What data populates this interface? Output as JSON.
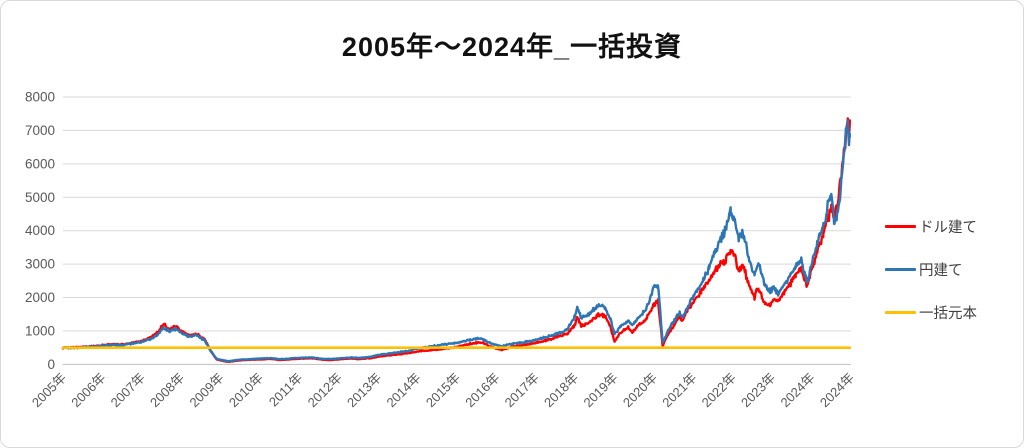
{
  "title": "2005年～2024年_一括投資",
  "legend": {
    "position": "right",
    "items": [
      {
        "label": "ドル建て",
        "color": "#ff0000"
      },
      {
        "label": "円建て",
        "color": "#2e75b6"
      },
      {
        "label": "一括元本",
        "color": "#ffc000"
      }
    ]
  },
  "axis_colors": {
    "grid": "#d9d9d9",
    "axis_line": "#bfbfbf",
    "tick_text": "#595959"
  },
  "chart_data": {
    "type": "line",
    "title": "2005年～2024年_一括投資",
    "xlabel": "",
    "ylabel": "",
    "ylim": [
      0,
      8000
    ],
    "y_ticks": [
      0,
      1000,
      2000,
      3000,
      4000,
      5000,
      6000,
      7000,
      8000
    ],
    "xlim": [
      2005,
      2025
    ],
    "x_tick_labels": [
      "2005年",
      "2006年",
      "2007年",
      "2008年",
      "2009年",
      "2010年",
      "2011年",
      "2012年",
      "2013年",
      "2014年",
      "2015年",
      "2016年",
      "2017年",
      "2018年",
      "2019年",
      "2020年",
      "2021年",
      "2022年",
      "2023年",
      "2024年",
      "2024年"
    ],
    "grid": "horizontal",
    "legend_position": "right",
    "series": [
      {
        "name": "ドル建て",
        "color": "#ff0000",
        "points": [
          [
            2005.0,
            500
          ],
          [
            2005.3,
            510
          ],
          [
            2005.6,
            530
          ],
          [
            2006.0,
            570
          ],
          [
            2006.3,
            610
          ],
          [
            2006.5,
            590
          ],
          [
            2006.8,
            660
          ],
          [
            2007.0,
            700
          ],
          [
            2007.2,
            800
          ],
          [
            2007.4,
            950
          ],
          [
            2007.55,
            1200
          ],
          [
            2007.7,
            1050
          ],
          [
            2007.85,
            1150
          ],
          [
            2008.0,
            1000
          ],
          [
            2008.2,
            870
          ],
          [
            2008.4,
            900
          ],
          [
            2008.6,
            750
          ],
          [
            2008.75,
            400
          ],
          [
            2008.9,
            150
          ],
          [
            2009.0,
            120
          ],
          [
            2009.2,
            75
          ],
          [
            2009.4,
            110
          ],
          [
            2009.6,
            130
          ],
          [
            2009.8,
            140
          ],
          [
            2010.0,
            150
          ],
          [
            2010.3,
            165
          ],
          [
            2010.5,
            130
          ],
          [
            2010.75,
            150
          ],
          [
            2011.0,
            170
          ],
          [
            2011.3,
            185
          ],
          [
            2011.6,
            140
          ],
          [
            2011.8,
            130
          ],
          [
            2012.0,
            150
          ],
          [
            2012.3,
            175
          ],
          [
            2012.5,
            160
          ],
          [
            2012.8,
            185
          ],
          [
            2013.0,
            230
          ],
          [
            2013.3,
            275
          ],
          [
            2013.5,
            300
          ],
          [
            2013.8,
            340
          ],
          [
            2014.0,
            390
          ],
          [
            2014.3,
            420
          ],
          [
            2014.5,
            450
          ],
          [
            2014.8,
            490
          ],
          [
            2015.0,
            520
          ],
          [
            2015.3,
            610
          ],
          [
            2015.6,
            670
          ],
          [
            2015.8,
            560
          ],
          [
            2016.0,
            480
          ],
          [
            2016.15,
            430
          ],
          [
            2016.4,
            530
          ],
          [
            2016.6,
            560
          ],
          [
            2016.8,
            600
          ],
          [
            2017.0,
            650
          ],
          [
            2017.3,
            730
          ],
          [
            2017.5,
            800
          ],
          [
            2017.8,
            920
          ],
          [
            2018.0,
            1200
          ],
          [
            2018.05,
            1440
          ],
          [
            2018.15,
            1150
          ],
          [
            2018.35,
            1250
          ],
          [
            2018.6,
            1500
          ],
          [
            2018.75,
            1450
          ],
          [
            2018.9,
            1100
          ],
          [
            2019.0,
            680
          ],
          [
            2019.15,
            950
          ],
          [
            2019.35,
            1100
          ],
          [
            2019.45,
            960
          ],
          [
            2019.6,
            1150
          ],
          [
            2019.8,
            1350
          ],
          [
            2020.0,
            1800
          ],
          [
            2020.1,
            1900
          ],
          [
            2020.22,
            560
          ],
          [
            2020.35,
            900
          ],
          [
            2020.5,
            1150
          ],
          [
            2020.65,
            1450
          ],
          [
            2020.72,
            1300
          ],
          [
            2020.85,
            1600
          ],
          [
            2021.0,
            1900
          ],
          [
            2021.2,
            2200
          ],
          [
            2021.4,
            2500
          ],
          [
            2021.6,
            2900
          ],
          [
            2021.8,
            3100
          ],
          [
            2021.95,
            3400
          ],
          [
            2022.05,
            3250
          ],
          [
            2022.15,
            2800
          ],
          [
            2022.25,
            3000
          ],
          [
            2022.4,
            2400
          ],
          [
            2022.55,
            2000
          ],
          [
            2022.65,
            2300
          ],
          [
            2022.8,
            1800
          ],
          [
            2022.95,
            1750
          ],
          [
            2023.05,
            1950
          ],
          [
            2023.15,
            1850
          ],
          [
            2023.3,
            2150
          ],
          [
            2023.45,
            2400
          ],
          [
            2023.6,
            2700
          ],
          [
            2023.72,
            2900
          ],
          [
            2023.82,
            2500
          ],
          [
            2023.9,
            2350
          ],
          [
            2024.0,
            2800
          ],
          [
            2024.15,
            3400
          ],
          [
            2024.3,
            3900
          ],
          [
            2024.42,
            4400
          ],
          [
            2024.5,
            4700
          ],
          [
            2024.58,
            4350
          ],
          [
            2024.65,
            4700
          ],
          [
            2024.72,
            5300
          ],
          [
            2024.8,
            6100
          ],
          [
            2024.87,
            6600
          ],
          [
            2024.92,
            7400
          ],
          [
            2024.95,
            7100
          ],
          [
            2024.97,
            7300
          ]
        ]
      },
      {
        "name": "円建て",
        "color": "#2e75b6",
        "points": [
          [
            2005.0,
            500
          ],
          [
            2005.3,
            490
          ],
          [
            2005.6,
            520
          ],
          [
            2006.0,
            550
          ],
          [
            2006.3,
            590
          ],
          [
            2006.5,
            570
          ],
          [
            2006.8,
            630
          ],
          [
            2007.0,
            670
          ],
          [
            2007.2,
            750
          ],
          [
            2007.4,
            880
          ],
          [
            2007.55,
            1100
          ],
          [
            2007.7,
            980
          ],
          [
            2007.85,
            1060
          ],
          [
            2008.0,
            940
          ],
          [
            2008.2,
            840
          ],
          [
            2008.4,
            870
          ],
          [
            2008.6,
            720
          ],
          [
            2008.75,
            400
          ],
          [
            2008.9,
            170
          ],
          [
            2009.0,
            140
          ],
          [
            2009.2,
            95
          ],
          [
            2009.4,
            130
          ],
          [
            2009.6,
            150
          ],
          [
            2009.8,
            160
          ],
          [
            2010.0,
            175
          ],
          [
            2010.3,
            190
          ],
          [
            2010.5,
            155
          ],
          [
            2010.75,
            175
          ],
          [
            2011.0,
            195
          ],
          [
            2011.3,
            210
          ],
          [
            2011.6,
            165
          ],
          [
            2011.8,
            160
          ],
          [
            2012.0,
            180
          ],
          [
            2012.3,
            205
          ],
          [
            2012.5,
            195
          ],
          [
            2012.8,
            225
          ],
          [
            2013.0,
            280
          ],
          [
            2013.3,
            335
          ],
          [
            2013.5,
            360
          ],
          [
            2013.8,
            410
          ],
          [
            2014.0,
            480
          ],
          [
            2014.3,
            530
          ],
          [
            2014.5,
            560
          ],
          [
            2014.8,
            620
          ],
          [
            2015.0,
            650
          ],
          [
            2015.3,
            730
          ],
          [
            2015.6,
            790
          ],
          [
            2015.8,
            660
          ],
          [
            2016.0,
            580
          ],
          [
            2016.15,
            540
          ],
          [
            2016.4,
            620
          ],
          [
            2016.6,
            640
          ],
          [
            2016.8,
            680
          ],
          [
            2017.0,
            740
          ],
          [
            2017.3,
            830
          ],
          [
            2017.5,
            900
          ],
          [
            2017.8,
            1040
          ],
          [
            2018.0,
            1450
          ],
          [
            2018.05,
            1740
          ],
          [
            2018.15,
            1400
          ],
          [
            2018.35,
            1500
          ],
          [
            2018.6,
            1780
          ],
          [
            2018.75,
            1700
          ],
          [
            2018.9,
            1350
          ],
          [
            2019.0,
            900
          ],
          [
            2019.15,
            1150
          ],
          [
            2019.35,
            1300
          ],
          [
            2019.45,
            1160
          ],
          [
            2019.6,
            1400
          ],
          [
            2019.8,
            1650
          ],
          [
            2020.0,
            2300
          ],
          [
            2020.1,
            2400
          ],
          [
            2020.22,
            660
          ],
          [
            2020.35,
            1000
          ],
          [
            2020.5,
            1280
          ],
          [
            2020.65,
            1560
          ],
          [
            2020.72,
            1400
          ],
          [
            2020.85,
            1700
          ],
          [
            2021.0,
            2050
          ],
          [
            2021.2,
            2400
          ],
          [
            2021.4,
            2900
          ],
          [
            2021.6,
            3500
          ],
          [
            2021.8,
            4000
          ],
          [
            2021.95,
            4600
          ],
          [
            2022.05,
            4350
          ],
          [
            2022.15,
            3700
          ],
          [
            2022.25,
            3950
          ],
          [
            2022.4,
            3200
          ],
          [
            2022.55,
            2700
          ],
          [
            2022.65,
            3100
          ],
          [
            2022.8,
            2400
          ],
          [
            2022.95,
            2200
          ],
          [
            2023.05,
            2300
          ],
          [
            2023.15,
            2100
          ],
          [
            2023.3,
            2400
          ],
          [
            2023.45,
            2650
          ],
          [
            2023.6,
            2950
          ],
          [
            2023.72,
            3150
          ],
          [
            2023.82,
            2750
          ],
          [
            2023.9,
            2450
          ],
          [
            2024.0,
            3000
          ],
          [
            2024.15,
            3650
          ],
          [
            2024.3,
            4150
          ],
          [
            2024.42,
            4800
          ],
          [
            2024.5,
            5100
          ],
          [
            2024.58,
            4200
          ],
          [
            2024.65,
            4450
          ],
          [
            2024.72,
            5100
          ],
          [
            2024.8,
            6000
          ],
          [
            2024.87,
            7000
          ],
          [
            2024.92,
            7100
          ],
          [
            2024.95,
            6600
          ],
          [
            2024.97,
            6800
          ]
        ]
      },
      {
        "name": "一括元本",
        "color": "#ffc000",
        "points": [
          [
            2005.0,
            500
          ],
          [
            2024.97,
            500
          ]
        ]
      }
    ]
  }
}
